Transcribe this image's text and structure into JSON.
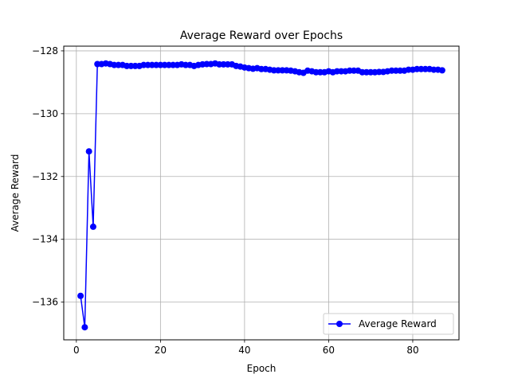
{
  "chart_data": {
    "type": "line",
    "title": "Average Reward over Epochs",
    "xlabel": "Epoch",
    "ylabel": "Average Reward",
    "xlim": [
      -3,
      91
    ],
    "ylim": [
      -137.2,
      -127.85
    ],
    "x_ticks": [
      0,
      20,
      40,
      60,
      80
    ],
    "y_ticks": [
      -136,
      -134,
      -132,
      -130,
      -128
    ],
    "y_tick_labels": [
      "−136",
      "−134",
      "−132",
      "−130",
      "−128"
    ],
    "grid": true,
    "legend_position": "lower-right",
    "colors": {
      "series": "#0000ff"
    },
    "series": [
      {
        "name": "Average Reward",
        "x": [
          1,
          2,
          3,
          4,
          5,
          6,
          7,
          8,
          9,
          10,
          11,
          12,
          13,
          14,
          15,
          16,
          17,
          18,
          19,
          20,
          21,
          22,
          23,
          24,
          25,
          26,
          27,
          28,
          29,
          30,
          31,
          32,
          33,
          34,
          35,
          36,
          37,
          38,
          39,
          40,
          41,
          42,
          43,
          44,
          45,
          46,
          47,
          48,
          49,
          50,
          51,
          52,
          53,
          54,
          55,
          56,
          57,
          58,
          59,
          60,
          61,
          62,
          63,
          64,
          65,
          66,
          67,
          68,
          69,
          70,
          71,
          72,
          73,
          74,
          75,
          76,
          77,
          78,
          79,
          80,
          81,
          82,
          83,
          84,
          85,
          86,
          87
        ],
        "values": [
          -135.8,
          -136.8,
          -131.2,
          -133.6,
          -128.42,
          -128.42,
          -128.4,
          -128.42,
          -128.45,
          -128.45,
          -128.45,
          -128.48,
          -128.48,
          -128.48,
          -128.48,
          -128.45,
          -128.45,
          -128.45,
          -128.45,
          -128.45,
          -128.45,
          -128.45,
          -128.45,
          -128.45,
          -128.43,
          -128.45,
          -128.45,
          -128.48,
          -128.45,
          -128.43,
          -128.42,
          -128.42,
          -128.4,
          -128.43,
          -128.43,
          -128.43,
          -128.43,
          -128.48,
          -128.5,
          -128.53,
          -128.55,
          -128.57,
          -128.55,
          -128.58,
          -128.58,
          -128.6,
          -128.62,
          -128.62,
          -128.62,
          -128.62,
          -128.63,
          -128.65,
          -128.68,
          -128.7,
          -128.63,
          -128.65,
          -128.68,
          -128.68,
          -128.68,
          -128.65,
          -128.68,
          -128.65,
          -128.65,
          -128.65,
          -128.63,
          -128.63,
          -128.63,
          -128.68,
          -128.68,
          -128.68,
          -128.68,
          -128.67,
          -128.67,
          -128.65,
          -128.63,
          -128.63,
          -128.63,
          -128.63,
          -128.6,
          -128.6,
          -128.58,
          -128.58,
          -128.58,
          -128.58,
          -128.6,
          -128.6,
          -128.62
        ]
      }
    ]
  }
}
